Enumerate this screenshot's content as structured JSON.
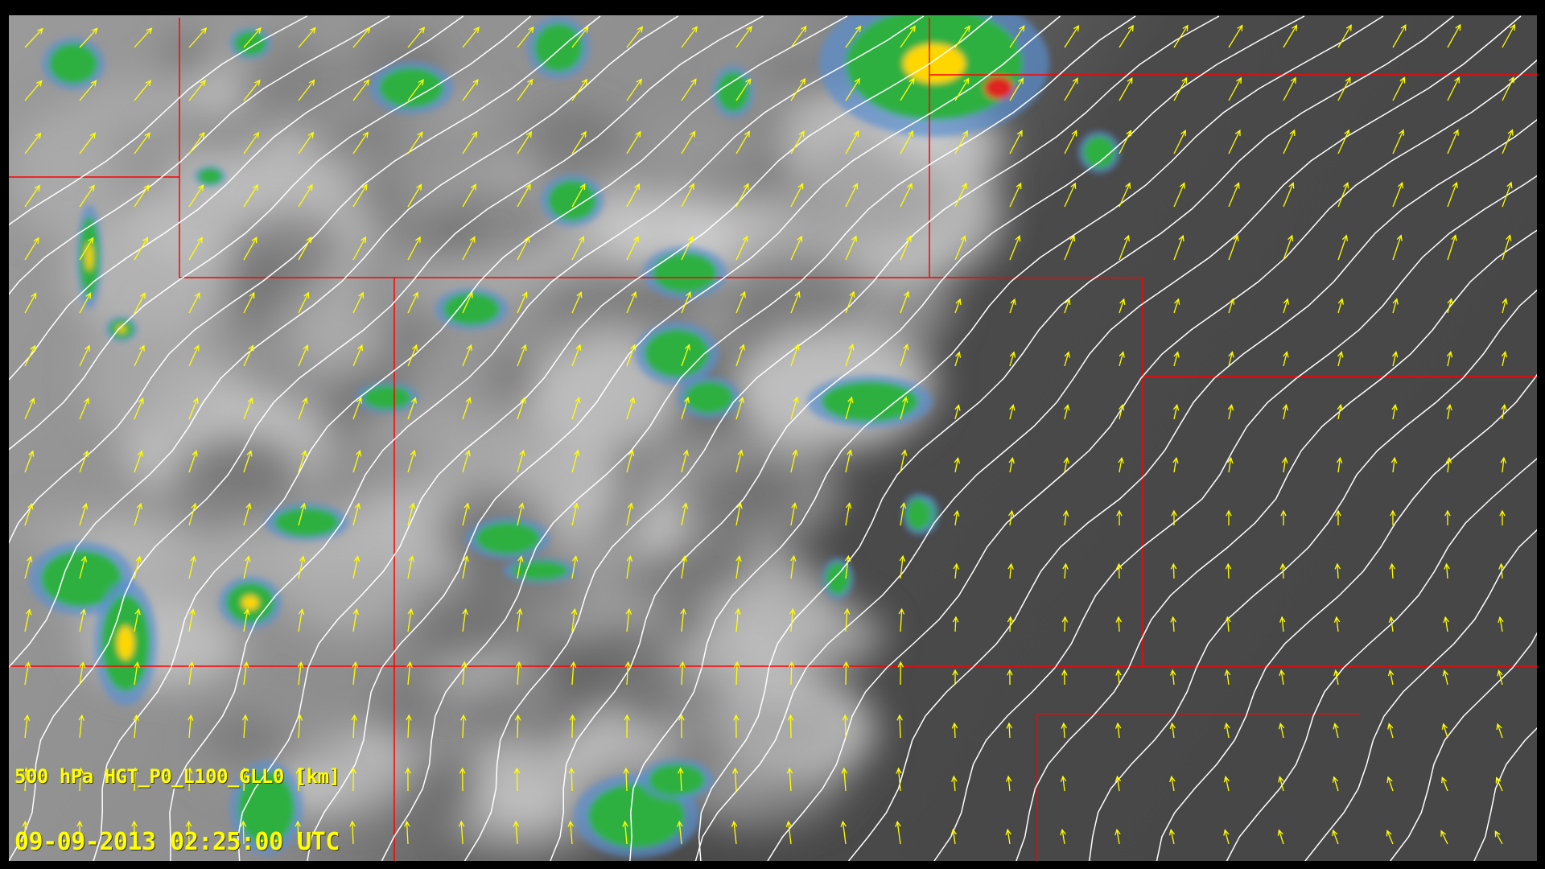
{
  "overlay": {
    "field_label": "500 hPa HGT_P0_L100_GLL0 [km]",
    "timestamp": "09-09-2013 02:25:00 UTC"
  },
  "layers": [
    "satellite-infrared",
    "radar-reflectivity",
    "height-contours",
    "wind-vectors",
    "state-boundaries"
  ],
  "colors": {
    "label": "#ffff00",
    "wind_vectors": "#ffff00",
    "contours": "#ffffff",
    "boundaries": "#ff0000",
    "radar_light": "#3cb44a",
    "radar_mid": "#ffd700",
    "radar_heavy": "#e02020",
    "cloud_bright": "#c8c8c8",
    "clear_sky": "#4a4a4a"
  }
}
